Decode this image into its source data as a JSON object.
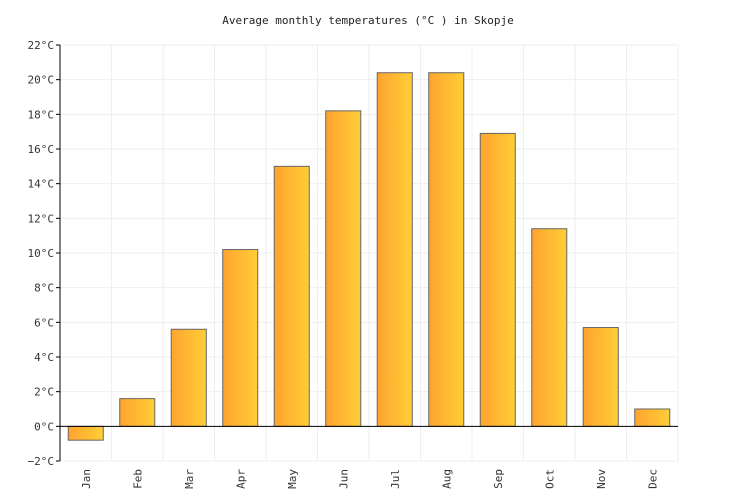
{
  "chart_data": {
    "type": "bar",
    "title": "Average monthly temperatures (°C ) in Skopje",
    "categories": [
      "Jan",
      "Feb",
      "Mar",
      "Apr",
      "May",
      "Jun",
      "Jul",
      "Aug",
      "Sep",
      "Oct",
      "Nov",
      "Dec"
    ],
    "values": [
      -0.8,
      1.6,
      5.6,
      10.2,
      15.0,
      18.2,
      20.4,
      20.4,
      16.9,
      11.4,
      5.7,
      1.0
    ],
    "ylim": [
      -2,
      22
    ],
    "yticks": [
      -2,
      0,
      2,
      4,
      6,
      8,
      10,
      12,
      14,
      16,
      18,
      20,
      22
    ],
    "ytick_labels": [
      "−2°C",
      "0°C",
      "2°C",
      "4°C",
      "6°C",
      "8°C",
      "10°C",
      "12°C",
      "14°C",
      "16°C",
      "18°C",
      "20°C",
      "22°C"
    ],
    "grid": true,
    "bar_gradient": [
      "#ffa32f",
      "#ffce36"
    ],
    "bar_stroke": "#666666",
    "grid_color": "#eeeeee",
    "text_color": "#333333"
  }
}
